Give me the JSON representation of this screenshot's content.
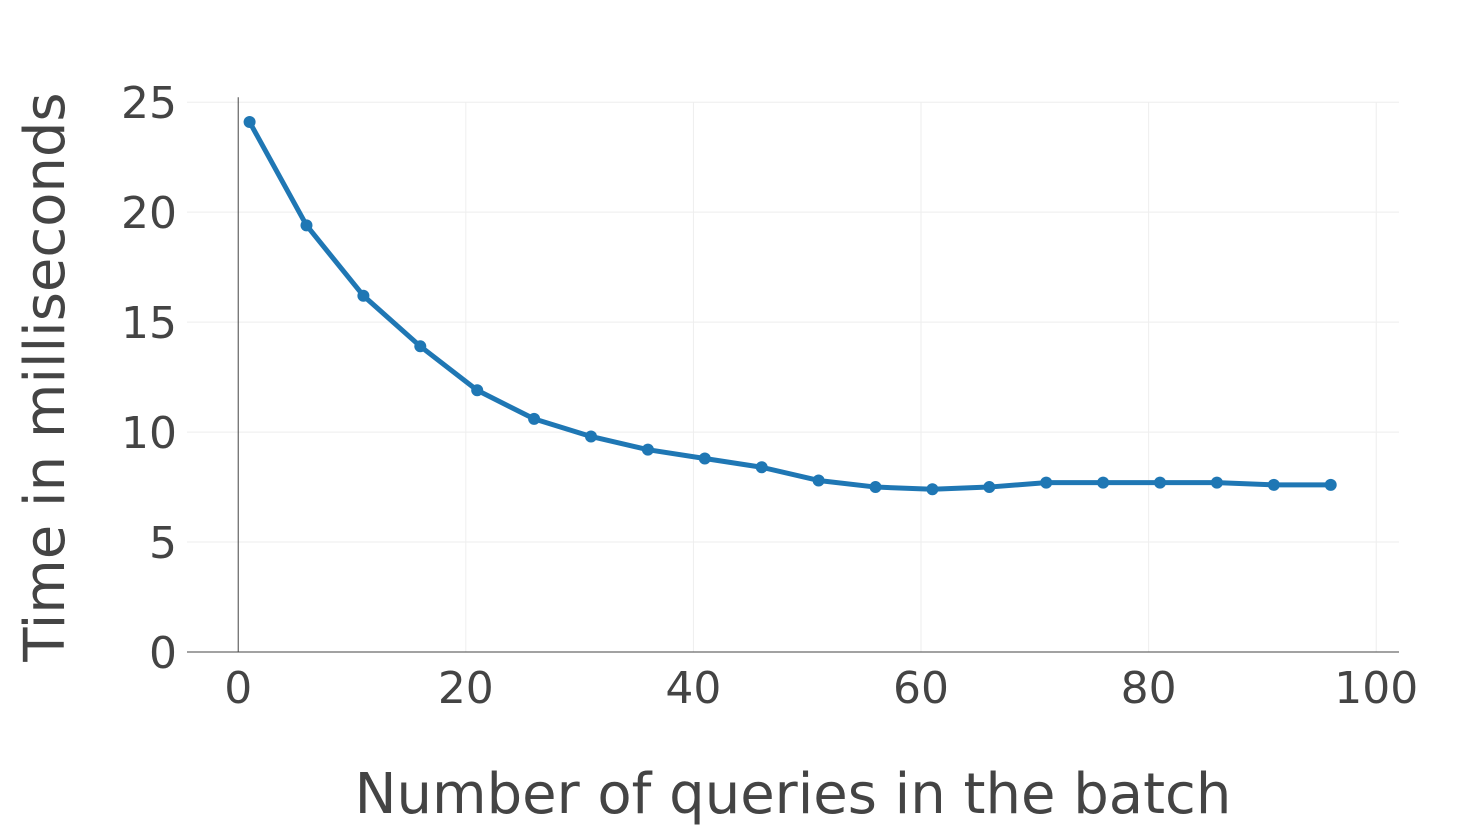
{
  "chart_data": {
    "type": "line",
    "xlabel": "Number of queries in the batch",
    "ylabel": "Time in milliseconds",
    "xlim": [
      -4.5,
      102
    ],
    "ylim": [
      0,
      25
    ],
    "x_ticks": [
      0,
      20,
      40,
      60,
      80,
      100
    ],
    "y_ticks": [
      0,
      5,
      10,
      15,
      20,
      25
    ],
    "grid": true,
    "colors": {
      "series": "#1f77b4",
      "grid": "#eeeeee",
      "axis": "#444444",
      "text": "#444444"
    },
    "series": [
      {
        "x": [
          1,
          6,
          11,
          16,
          21,
          26,
          31,
          36,
          41,
          46,
          51,
          56,
          61,
          66,
          71,
          76,
          81,
          86,
          91,
          96
        ],
        "y": [
          24.1,
          19.4,
          16.2,
          13.9,
          11.9,
          10.6,
          9.8,
          9.2,
          8.8,
          8.4,
          7.8,
          7.5,
          7.4,
          7.5,
          7.7,
          7.7,
          7.7,
          7.7,
          7.6,
          7.6
        ]
      }
    ]
  }
}
